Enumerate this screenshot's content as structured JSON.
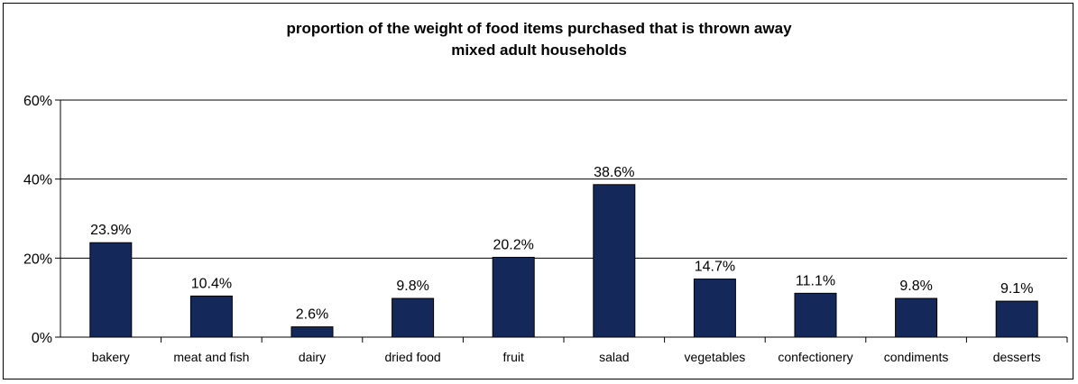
{
  "chart_data": {
    "type": "bar",
    "title_line1": "proportion of the weight of food items purchased that is thrown away",
    "title_line2": "mixed adult households",
    "xlabel": "",
    "ylabel": "",
    "categories": [
      "bakery",
      "meat and fish",
      "dairy",
      "dried food",
      "fruit",
      "salad",
      "vegetables",
      "confectionery",
      "condiments",
      "desserts"
    ],
    "values": [
      23.9,
      10.4,
      2.6,
      9.8,
      20.2,
      38.6,
      14.7,
      11.1,
      9.8,
      9.1
    ],
    "data_labels": [
      "23.9%",
      "10.4%",
      "2.6%",
      "9.8%",
      "20.2%",
      "38.6%",
      "14.7%",
      "11.1%",
      "9.8%",
      "9.1%"
    ],
    "ylim": [
      0,
      60
    ],
    "yticks": [
      0,
      20,
      40,
      60
    ],
    "ytick_labels": [
      "0%",
      "20%",
      "40%",
      "60%"
    ],
    "grid": "horizontal",
    "legend": "none",
    "bar_color": "#14285a"
  }
}
